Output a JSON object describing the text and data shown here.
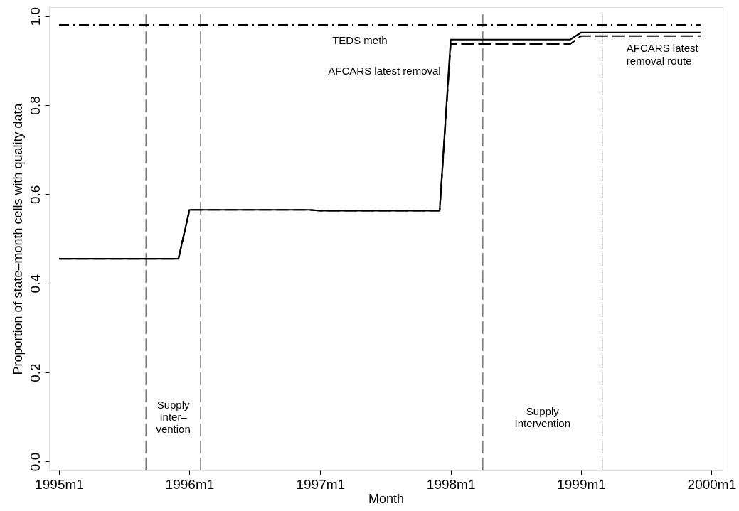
{
  "chart_data": {
    "type": "line",
    "xlabel": "Month",
    "ylabel": "Proportion of state–month cells with quality data",
    "xlim": [
      "1994-12-04",
      "2000-02-01"
    ],
    "ylim": [
      -0.02,
      1.02
    ],
    "xticks": [
      {
        "value": "1995-01",
        "label": "1995m1"
      },
      {
        "value": "1996-01",
        "label": "1996m1"
      },
      {
        "value": "1997-01",
        "label": "1997m1"
      },
      {
        "value": "1998-01",
        "label": "1998m1"
      },
      {
        "value": "1999-01",
        "label": "1999m1"
      },
      {
        "value": "2000-01",
        "label": "2000m1"
      }
    ],
    "yticks": [
      {
        "value": 0,
        "label": "0.0"
      },
      {
        "value": 0.2,
        "label": "0.2"
      },
      {
        "value": 0.4,
        "label": "0.4"
      },
      {
        "value": 0.6,
        "label": "0.6"
      },
      {
        "value": 0.8,
        "label": "0.8"
      },
      {
        "value": 1,
        "label": "1.0"
      }
    ],
    "grid": false,
    "marker": "none",
    "series": [
      {
        "name": "TEDS meth",
        "color": "#000000",
        "line_style": "dashdot",
        "x": [
          "1995-01",
          "1999-12"
        ],
        "values": [
          0.98,
          0.98
        ]
      },
      {
        "name": "AFCARS latest removal route",
        "color": "#000000",
        "line_style": "dashed",
        "x": [
          "1995-01",
          "1995-12",
          "1996-01",
          "1996-12",
          "1997-01",
          "1997-12",
          "1998-01",
          "1998-12",
          "1999-01",
          "1999-12"
        ],
        "values": [
          0.455,
          0.455,
          0.565,
          0.565,
          0.563,
          0.563,
          0.937,
          0.937,
          0.955,
          0.955
        ]
      },
      {
        "name": "AFCARS latest removal",
        "color": "#000000",
        "line_style": "solid",
        "x": [
          "1995-01",
          "1995-12",
          "1996-01",
          "1996-12",
          "1997-01",
          "1997-12",
          "1998-01",
          "1998-12",
          "1999-01",
          "1999-12"
        ],
        "values": [
          0.455,
          0.455,
          0.565,
          0.565,
          0.563,
          0.563,
          0.947,
          0.947,
          0.963,
          0.963
        ]
      }
    ],
    "ref_lines": [
      {
        "axis": "x",
        "value": "1995-09",
        "line_style": "dashed",
        "color": "#333333"
      },
      {
        "axis": "x",
        "value": "1996-02",
        "line_style": "dashed",
        "color": "#333333"
      },
      {
        "axis": "x",
        "value": "1998-04",
        "line_style": "dashed",
        "color": "#333333"
      },
      {
        "axis": "x",
        "value": "1999-03",
        "line_style": "dashed",
        "color": "#333333"
      }
    ],
    "annotations": [
      "Supply Inter– vention",
      "Supply Intervention"
    ]
  }
}
